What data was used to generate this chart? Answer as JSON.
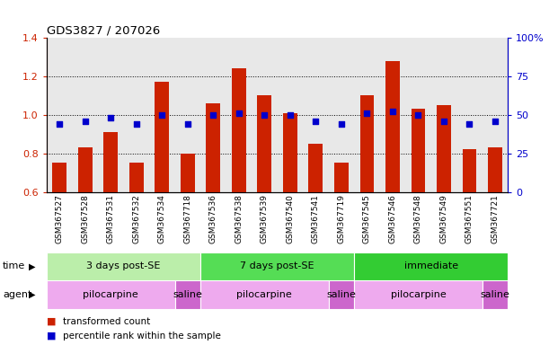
{
  "title": "GDS3827 / 207026",
  "samples": [
    "GSM367527",
    "GSM367528",
    "GSM367531",
    "GSM367532",
    "GSM367534",
    "GSM367718",
    "GSM367536",
    "GSM367538",
    "GSM367539",
    "GSM367540",
    "GSM367541",
    "GSM367719",
    "GSM367545",
    "GSM367546",
    "GSM367548",
    "GSM367549",
    "GSM367551",
    "GSM367721"
  ],
  "bar_values": [
    0.75,
    0.83,
    0.91,
    0.75,
    1.17,
    0.8,
    1.06,
    1.24,
    1.1,
    1.01,
    0.85,
    0.75,
    1.1,
    1.28,
    1.03,
    1.05,
    0.82,
    0.83
  ],
  "dot_percentiles": [
    44,
    46,
    48,
    44,
    50,
    44,
    50,
    51,
    50,
    50,
    46,
    44,
    51,
    52,
    50,
    46,
    44,
    46
  ],
  "bar_color": "#cc2200",
  "dot_color": "#0000cc",
  "ylim": [
    0.6,
    1.4
  ],
  "y2lim": [
    0,
    100
  ],
  "yticks": [
    0.6,
    0.8,
    1.0,
    1.2,
    1.4
  ],
  "y2ticks": [
    0,
    25,
    50,
    75,
    100
  ],
  "dotted_lines": [
    0.8,
    1.0,
    1.2
  ],
  "time_groups": [
    {
      "label": "3 days post-SE",
      "start": 0,
      "end": 6,
      "color": "#bbeeaa"
    },
    {
      "label": "7 days post-SE",
      "start": 6,
      "end": 12,
      "color": "#55dd55"
    },
    {
      "label": "immediate",
      "start": 12,
      "end": 18,
      "color": "#33cc33"
    }
  ],
  "agent_groups": [
    {
      "label": "pilocarpine",
      "start": 0,
      "end": 5,
      "color": "#eeaaee"
    },
    {
      "label": "saline",
      "start": 5,
      "end": 6,
      "color": "#cc66cc"
    },
    {
      "label": "pilocarpine",
      "start": 6,
      "end": 11,
      "color": "#eeaaee"
    },
    {
      "label": "saline",
      "start": 11,
      "end": 12,
      "color": "#cc66cc"
    },
    {
      "label": "pilocarpine",
      "start": 12,
      "end": 17,
      "color": "#eeaaee"
    },
    {
      "label": "saline",
      "start": 17,
      "end": 18,
      "color": "#cc66cc"
    }
  ],
  "legend_bar_label": "transformed count",
  "legend_dot_label": "percentile rank within the sample",
  "time_label": "time",
  "agent_label": "agent",
  "bar_width": 0.55,
  "bg_color": "#e8e8e8",
  "plot_bg": "#ffffff"
}
